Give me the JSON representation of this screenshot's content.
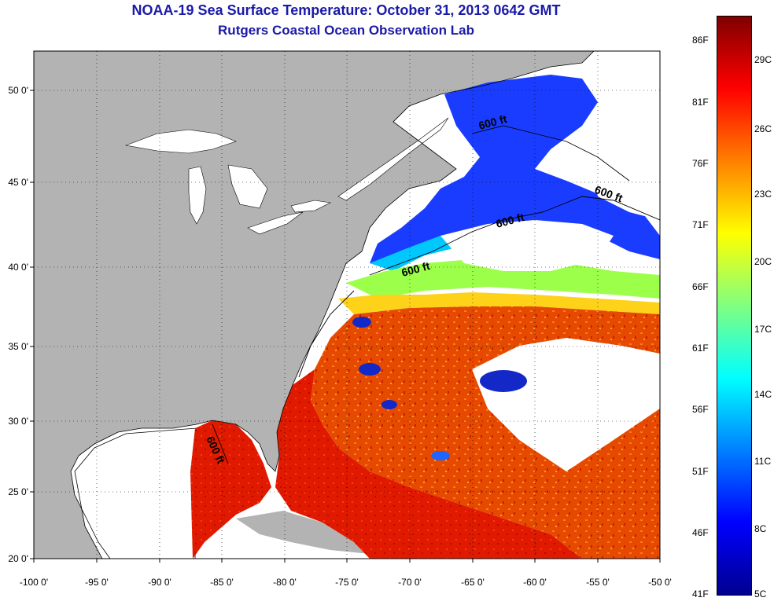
{
  "title_line1": "NOAA-19 Sea Surface Temperature:  October 31, 2013 0642 GMT",
  "title_line2": "Rutgers Coastal Ocean Observation Lab",
  "lat_ticks": [
    "50 0'",
    "45 0'",
    "40 0'",
    "35 0'",
    "30 0'",
    "25 0'",
    "20 0'"
  ],
  "lon_ticks": [
    "-100 0'",
    "-95 0'",
    "-90 0'",
    "-85 0'",
    "-80 0'",
    "-75 0'",
    "-70 0'",
    "-65 0'",
    "-60 0'",
    "-55 0'",
    "-50 0'"
  ],
  "contour_labels": [
    "600 ft",
    "600 ft",
    "600 ft",
    "600 ft",
    "600 ft"
  ],
  "colorbar": {
    "fahrenheit": [
      "86F",
      "81F",
      "76F",
      "71F",
      "66F",
      "61F",
      "56F",
      "51F",
      "46F",
      "41F"
    ],
    "celsius": [
      "29C",
      "26C",
      "23C",
      "20C",
      "17C",
      "14C",
      "11C",
      "8C",
      "5C"
    ],
    "colors": [
      "#00008f",
      "#0000ff",
      "#0080ff",
      "#00ffff",
      "#80ff80",
      "#ffff00",
      "#ff8000",
      "#ff0000",
      "#800000"
    ]
  },
  "colors": {
    "land": "#b3b3b3",
    "no_data": "#ffffff",
    "title": "#1a1aa8"
  }
}
